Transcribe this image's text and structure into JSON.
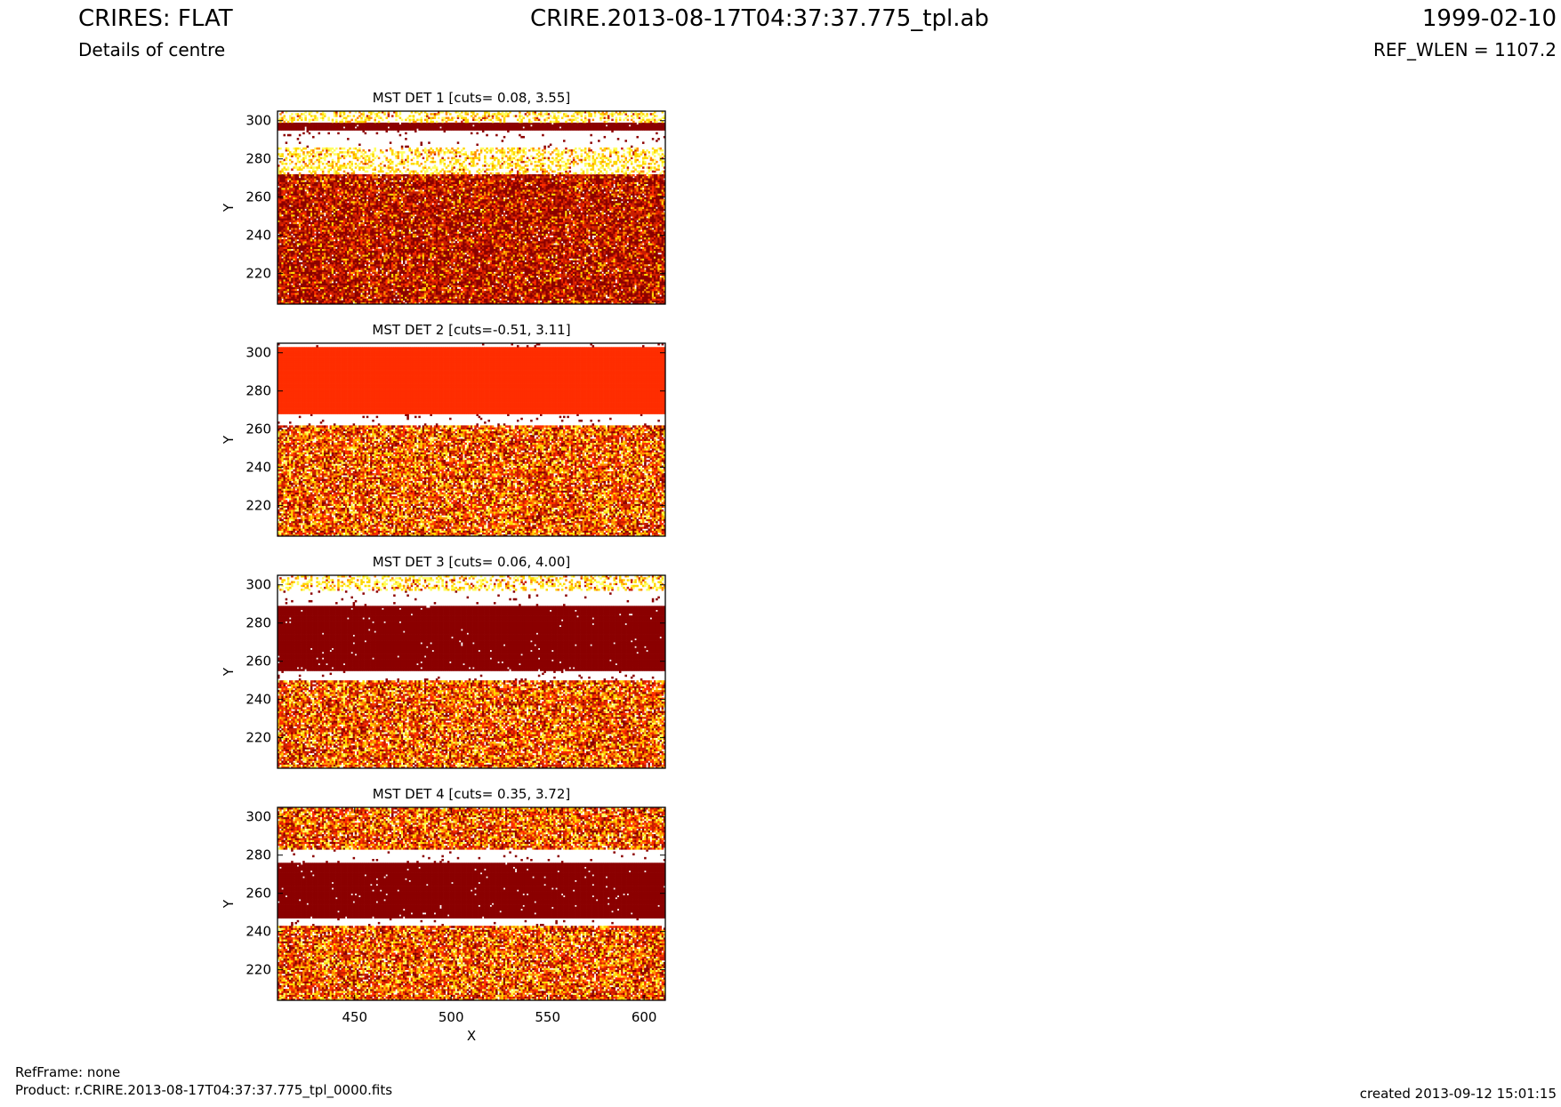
{
  "header": {
    "title": "CRIRES: FLAT",
    "subtitle": "Details of centre",
    "filename": "CRIRE.2013-08-17T04:37:37.775_tpl.ab",
    "date": "1999-02-10",
    "ref_wlen": "REF_WLEN = 1107.2"
  },
  "footer": {
    "ref_frame": "RefFrame: none",
    "product": "Product: r.CRIRE.2013-08-17T04:37:37.775_tpl_0000.fits",
    "created": "created 2013-09-12 15:01:15"
  },
  "colors": {
    "cmap": [
      "#8b0000",
      "#c81e00",
      "#ff2d00",
      "#ff8c00",
      "#ffd700",
      "#ffff60",
      "#ffffff"
    ]
  },
  "chart_data": [
    {
      "type": "heatmap",
      "title": "MST DET 1 [cuts= 0.08, 3.55]",
      "xlabel": "",
      "ylabel": "Y",
      "xlim": [
        410,
        611
      ],
      "ylim": [
        204,
        305
      ],
      "xticks": [],
      "yticks": [
        220,
        240,
        260,
        280,
        300
      ],
      "bands": [
        {
          "y": [
            204,
            272
          ],
          "level": "noisy-dark"
        },
        {
          "y": [
            272,
            286
          ],
          "level": "noisy-light"
        },
        {
          "y": [
            286,
            295
          ],
          "level": "saturated-white"
        },
        {
          "y": [
            295,
            299
          ],
          "level": "saturated-dark"
        },
        {
          "y": [
            299,
            305
          ],
          "level": "noisy-light"
        }
      ]
    },
    {
      "type": "heatmap",
      "title": "MST DET 2 [cuts=-0.51, 3.11]",
      "xlabel": "",
      "ylabel": "Y",
      "xlim": [
        410,
        611
      ],
      "ylim": [
        204,
        305
      ],
      "xticks": [],
      "yticks": [
        220,
        240,
        260,
        280,
        300
      ],
      "bands": [
        {
          "y": [
            204,
            262
          ],
          "level": "noisy-mixed"
        },
        {
          "y": [
            262,
            268
          ],
          "level": "saturated-white"
        },
        {
          "y": [
            268,
            303
          ],
          "level": "saturated-red"
        },
        {
          "y": [
            303,
            305
          ],
          "level": "saturated-white"
        }
      ]
    },
    {
      "type": "heatmap",
      "title": "MST DET 3 [cuts= 0.06, 4.00]",
      "xlabel": "",
      "ylabel": "Y",
      "xlim": [
        410,
        611
      ],
      "ylim": [
        204,
        305
      ],
      "xticks": [],
      "yticks": [
        220,
        240,
        260,
        280,
        300
      ],
      "bands": [
        {
          "y": [
            204,
            250
          ],
          "level": "noisy-mixed"
        },
        {
          "y": [
            250,
            255
          ],
          "level": "saturated-white"
        },
        {
          "y": [
            255,
            289
          ],
          "level": "saturated-dark"
        },
        {
          "y": [
            289,
            297
          ],
          "level": "saturated-white"
        },
        {
          "y": [
            297,
            305
          ],
          "level": "noisy-light"
        }
      ]
    },
    {
      "type": "heatmap",
      "title": "MST DET 4 [cuts= 0.35, 3.72]",
      "xlabel": "X",
      "ylabel": "Y",
      "xlim": [
        410,
        611
      ],
      "ylim": [
        204,
        305
      ],
      "xticks": [
        450,
        500,
        550,
        600
      ],
      "yticks": [
        220,
        240,
        260,
        280,
        300
      ],
      "bands": [
        {
          "y": [
            204,
            243
          ],
          "level": "noisy-mixed"
        },
        {
          "y": [
            243,
            247
          ],
          "level": "saturated-white"
        },
        {
          "y": [
            247,
            276
          ],
          "level": "saturated-dark"
        },
        {
          "y": [
            276,
            283
          ],
          "level": "saturated-white"
        },
        {
          "y": [
            283,
            305
          ],
          "level": "noisy-mixed"
        }
      ]
    }
  ]
}
